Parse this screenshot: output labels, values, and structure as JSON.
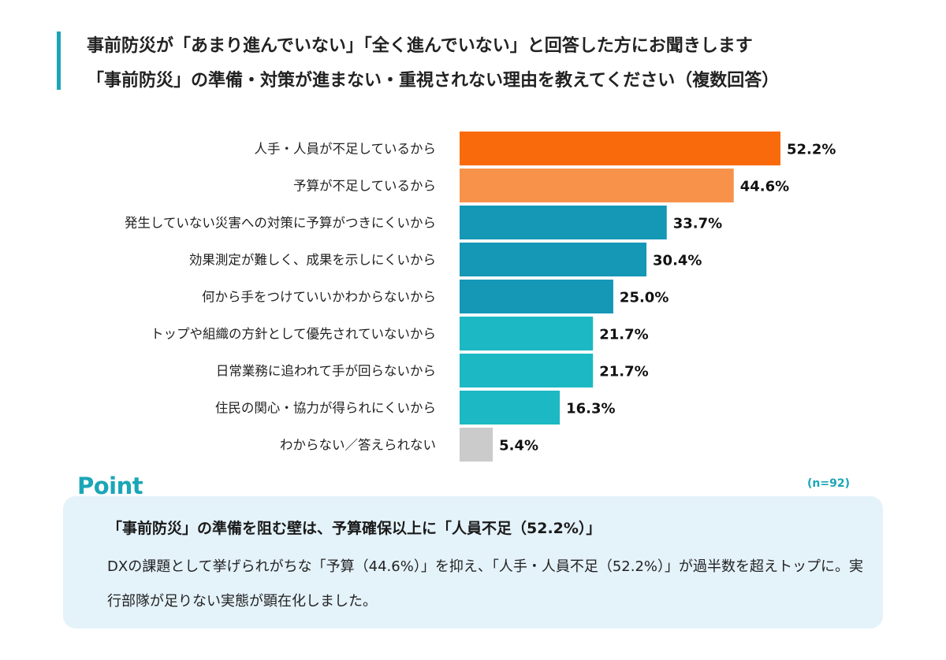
{
  "title": {
    "line1": "事前防災が「あまり進んでいない」「全く進んでいない」と回答した方にお聞きします",
    "line2": "「事前防災」の準備・対策が進まない・重視されない理由を教えてください（複数回答）"
  },
  "chart_data": {
    "type": "bar",
    "orientation": "horizontal",
    "categories": [
      "人手・人員が不足しているから",
      "予算が不足しているから",
      "発生していない災害への対策に予算がつきにくいから",
      "効果測定が難しく、成果を示しにくいから",
      "何から手をつけていいかわからないから",
      "トップや組織の方針として優先されていないから",
      "日常業務に追われて手が回らないから",
      "住民の関心・協力が得られにくいから",
      "わからない／答えられない"
    ],
    "values": [
      52.2,
      44.6,
      33.7,
      30.4,
      25.0,
      21.7,
      21.7,
      16.3,
      5.4
    ],
    "value_labels": [
      "52.2%",
      "44.6%",
      "33.7%",
      "30.4%",
      "25.0%",
      "21.7%",
      "21.7%",
      "16.3%",
      "5.4%"
    ],
    "colors": [
      "#f96a0c",
      "#f8924a",
      "#1597b6",
      "#1597b6",
      "#1597b6",
      "#1cb8c4",
      "#1cb8c4",
      "#1cb8c4",
      "#cbcbcb"
    ],
    "xlim": [
      0,
      52.2
    ],
    "grid": false,
    "legend": "none"
  },
  "point": {
    "title": "Point",
    "n_note": "(n=92)",
    "headline": "「事前防災」の準備を阻む壁は、予算確保以上に「人員不足（52.2%）」",
    "body": "DXの課題として挙げられがちな「予算（44.6%）」を抑え、「人手・人員不足（52.2%）」が過半数を超えトップに。実行部隊が足りない実態が顕在化しました。"
  }
}
